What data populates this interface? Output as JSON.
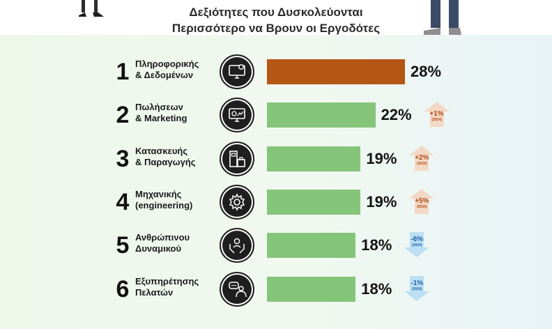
{
  "title_lines": [
    "Δεξιότητες που Δυσκολεύονται",
    "Περισσότερο να Βρουν οι Εργοδότες"
  ],
  "colors": {
    "highlight_bar": "#b55615",
    "bar": "#85c57a",
    "up_arrow": "#f3d9c5",
    "up_text": "#b14a12",
    "down_arrow": "#bcdff4",
    "down_text": "#1f5fa8"
  },
  "chart_data": {
    "type": "bar",
    "orientation": "horizontal",
    "categories": [
      [
        "Πληροφορικής",
        "& Δεδομένων"
      ],
      [
        "Πωλήσεων",
        "& Marketing"
      ],
      [
        "Κατασκευής",
        "& Παραγωγής"
      ],
      [
        "Μηχανικής",
        "(engineering)"
      ],
      [
        "Ανθρώπινου",
        "Δυναμικού"
      ],
      [
        "Εξυπηρέτησης",
        "Πελατών"
      ]
    ],
    "ranks": [
      "1",
      "2",
      "3",
      "4",
      "5",
      "6"
    ],
    "values": [
      28,
      22,
      19,
      19,
      18,
      18
    ],
    "value_labels": [
      "28%",
      "22%",
      "19%",
      "19%",
      "18%",
      "18%"
    ],
    "icons": [
      "monitor-gear-icon",
      "monitor-chart-icon",
      "factory-machine-icon",
      "gear-icon",
      "people-hands-icon",
      "support-chat-icon"
    ],
    "changes": [
      null,
      {
        "direction": "up",
        "label": "+1%",
        "year": "(2024)"
      },
      {
        "direction": "up",
        "label": "+2%",
        "year": "(2024)"
      },
      {
        "direction": "up",
        "label": "+5%",
        "year": "(2024)"
      },
      {
        "direction": "down",
        "label": "-6%",
        "year": "(2024)"
      },
      {
        "direction": "down",
        "label": "-1%",
        "year": "(2024)"
      }
    ],
    "highlight_index": 0,
    "xlim": [
      0,
      28
    ]
  }
}
